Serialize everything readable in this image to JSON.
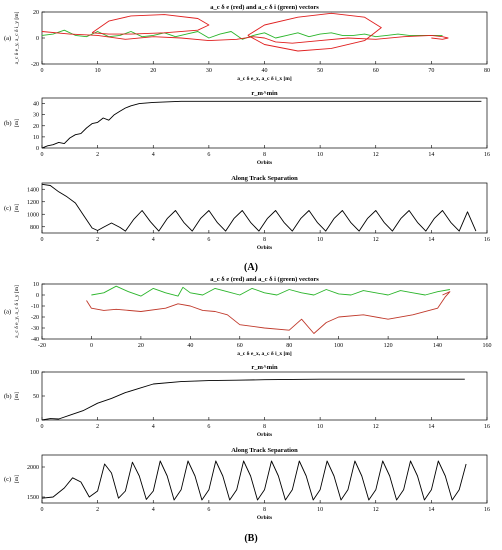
{
  "figure": {
    "labels": [
      "(A)",
      "(B)"
    ]
  },
  "chart_data": [
    {
      "type": "line",
      "panel_id": "(a)",
      "title": "a_c δ e (red) and a_c δ i (green) vectors",
      "xlabel": "a_c δ e_x, a_c δ i_x [m]",
      "ylabel": "a_c δ e_y, a_c δ i_y [m]",
      "xlim": [
        0,
        80
      ],
      "ylim": [
        -20,
        20
      ],
      "xticks": [
        0,
        10,
        20,
        30,
        40,
        50,
        60,
        70,
        80
      ],
      "yticks": [
        -20,
        0,
        20
      ],
      "grid": false,
      "series": [
        {
          "name": "green",
          "color": "#2bb52b",
          "x": [
            0,
            2,
            4,
            6,
            8,
            10,
            12,
            14,
            16,
            18,
            20,
            22,
            24,
            26,
            28,
            30,
            32,
            34,
            36,
            38,
            40,
            42,
            44,
            46,
            48,
            50,
            52,
            54,
            56,
            58,
            60,
            62,
            64,
            66,
            68,
            70,
            72
          ],
          "y": [
            2,
            3,
            6,
            2,
            1,
            5,
            1,
            2,
            5,
            1,
            2,
            4,
            1,
            3,
            5,
            0,
            3,
            5,
            -1,
            2,
            4,
            0,
            2,
            4,
            1,
            3,
            4,
            2,
            2,
            3,
            1,
            2,
            3,
            2,
            2,
            2,
            2
          ]
        },
        {
          "name": "red",
          "color": "#e02020",
          "x": [
            0,
            5,
            10,
            15,
            20,
            25,
            30,
            35,
            38,
            40,
            42,
            45,
            50,
            55,
            60,
            65,
            70,
            72,
            73,
            72,
            70
          ],
          "y": [
            5,
            3,
            2,
            -1,
            1,
            0,
            -2,
            -1,
            1,
            0,
            -3,
            -4,
            -2,
            0,
            -1,
            1,
            2,
            1,
            0,
            -1,
            0
          ]
        },
        {
          "name": "red-loop-1",
          "color": "#e02020",
          "x": [
            9,
            12,
            16,
            22,
            28,
            30,
            28,
            22,
            16,
            12,
            9
          ],
          "y": [
            4,
            13,
            17,
            18,
            15,
            10,
            6,
            4,
            3,
            3,
            4
          ]
        },
        {
          "name": "red-loop-2",
          "color": "#e02020",
          "x": [
            37,
            40,
            46,
            52,
            58,
            61,
            58,
            52,
            46,
            40,
            37
          ],
          "y": [
            2,
            10,
            16,
            19,
            16,
            8,
            -2,
            -8,
            -10,
            -5,
            2
          ]
        }
      ]
    },
    {
      "type": "line",
      "panel_id": "(b)",
      "title": "r_m^min",
      "xlabel": "Orbits",
      "ylabel": "[m]",
      "xlim": [
        0,
        16
      ],
      "ylim": [
        0,
        45
      ],
      "xticks": [
        0,
        2,
        4,
        6,
        8,
        10,
        12,
        14,
        16
      ],
      "yticks": [
        0,
        10,
        20,
        30,
        40
      ],
      "grid": false,
      "series": [
        {
          "name": "r_m^min",
          "color": "#000000",
          "x": [
            0,
            0.2,
            0.4,
            0.6,
            0.8,
            1.0,
            1.2,
            1.4,
            1.6,
            1.8,
            2.0,
            2.2,
            2.4,
            2.6,
            2.8,
            3.0,
            3.2,
            3.5,
            4.0,
            5,
            6,
            8,
            10,
            12,
            14,
            15.8
          ],
          "y": [
            0,
            2,
            3,
            5,
            4,
            9,
            12,
            13,
            18,
            22,
            23,
            27,
            25,
            30,
            33,
            36,
            38,
            40,
            41,
            42,
            42,
            42,
            42,
            42,
            42,
            42
          ]
        }
      ]
    },
    {
      "type": "line",
      "panel_id": "(c)",
      "title": "Along Track Separation",
      "xlabel": "Orbits",
      "ylabel": "[m]",
      "xlim": [
        0,
        16
      ],
      "ylim": [
        700,
        1500
      ],
      "xticks": [
        0,
        2,
        4,
        6,
        8,
        10,
        12,
        14,
        16
      ],
      "yticks": [
        800,
        1000,
        1200,
        1400
      ],
      "grid": false,
      "series": [
        {
          "name": "along-track",
          "color": "#000000",
          "x": [
            0,
            0.3,
            0.6,
            0.9,
            1.2,
            1.5,
            1.8,
            2.0,
            2.2,
            2.5,
            2.8,
            3.0,
            3.3,
            3.6,
            3.9,
            4.2,
            4.5,
            4.8,
            5.1,
            5.4,
            5.7,
            6.0,
            6.3,
            6.6,
            6.9,
            7.2,
            7.5,
            7.8,
            8.1,
            8.4,
            8.7,
            9.0,
            9.3,
            9.6,
            9.9,
            10.2,
            10.5,
            10.8,
            11.1,
            11.4,
            11.7,
            12.0,
            12.3,
            12.6,
            12.9,
            13.2,
            13.5,
            13.8,
            14.1,
            14.4,
            14.7,
            15.0,
            15.3,
            15.6
          ],
          "y": [
            1480,
            1460,
            1360,
            1280,
            1180,
            980,
            780,
            740,
            790,
            860,
            790,
            730,
            920,
            1060,
            880,
            730,
            930,
            1060,
            870,
            730,
            930,
            1060,
            870,
            730,
            930,
            1060,
            870,
            730,
            930,
            1060,
            870,
            730,
            930,
            1060,
            870,
            730,
            930,
            1060,
            870,
            730,
            930,
            1060,
            870,
            730,
            930,
            1060,
            870,
            730,
            930,
            1060,
            870,
            730,
            1040,
            730
          ]
        }
      ]
    },
    {
      "type": "line",
      "panel_id": "(a)",
      "title": "a_c δ e (red) and a_c δ i (green) vectors",
      "xlabel": "a_c δ e_x, a_c δ i_x [m]",
      "ylabel": "a_c δ e_y, a_c δ i_y [m]",
      "xlim": [
        -20,
        160
      ],
      "ylim": [
        -40,
        10
      ],
      "xticks": [
        -20,
        0,
        20,
        40,
        60,
        80,
        100,
        120,
        140,
        160
      ],
      "yticks": [
        -40,
        -30,
        -20,
        -10,
        0,
        10
      ],
      "grid": false,
      "series": [
        {
          "name": "green",
          "color": "#2bb52b",
          "x": [
            0,
            5,
            10,
            15,
            20,
            25,
            30,
            35,
            37,
            40,
            45,
            50,
            55,
            60,
            65,
            70,
            75,
            80,
            85,
            90,
            95,
            100,
            105,
            110,
            115,
            120,
            125,
            130,
            135,
            140,
            145
          ],
          "y": [
            0,
            2,
            8,
            3,
            -1,
            6,
            2,
            -1,
            7,
            2,
            0,
            6,
            3,
            0,
            6,
            2,
            0,
            5,
            2,
            0,
            5,
            1,
            0,
            4,
            2,
            0,
            4,
            2,
            0,
            3,
            5
          ]
        },
        {
          "name": "red",
          "color": "#c0392b",
          "x": [
            -2,
            0,
            5,
            10,
            20,
            30,
            35,
            40,
            45,
            50,
            55,
            60,
            70,
            80,
            85,
            90,
            95,
            100,
            110,
            120,
            130,
            140,
            143,
            145,
            142
          ],
          "y": [
            -5,
            -12,
            -14,
            -13,
            -15,
            -12,
            -8,
            -10,
            -14,
            -15,
            -18,
            -27,
            -30,
            -32,
            -22,
            -35,
            -25,
            -20,
            -18,
            -22,
            -18,
            -12,
            -2,
            3,
            0
          ]
        }
      ]
    },
    {
      "type": "line",
      "panel_id": "(b)",
      "title": "r_m^min",
      "xlabel": "Orbits",
      "ylabel": "[m]",
      "xlim": [
        0,
        16
      ],
      "ylim": [
        0,
        100
      ],
      "xticks": [
        0,
        2,
        4,
        6,
        8,
        10,
        12,
        14,
        16
      ],
      "yticks": [
        0,
        50,
        100
      ],
      "grid": false,
      "series": [
        {
          "name": "r_m^min",
          "color": "#000000",
          "x": [
            0,
            0.3,
            0.6,
            1.0,
            1.5,
            2.0,
            2.5,
            3.0,
            3.5,
            4.0,
            5,
            6,
            7,
            8,
            10,
            12,
            14,
            15.2
          ],
          "y": [
            0,
            3,
            2,
            10,
            20,
            35,
            45,
            57,
            66,
            75,
            80,
            82,
            83,
            84,
            85,
            85,
            85,
            85
          ]
        }
      ]
    },
    {
      "type": "line",
      "panel_id": "(c)",
      "title": "Along Track Separation",
      "xlabel": "Orbits",
      "ylabel": "[m]",
      "xlim": [
        0,
        16
      ],
      "ylim": [
        1400,
        2200
      ],
      "xticks": [
        0,
        2,
        4,
        6,
        8,
        10,
        12,
        14,
        16
      ],
      "yticks": [
        1500,
        2000
      ],
      "grid": false,
      "series": [
        {
          "name": "along-track",
          "color": "#000000",
          "x": [
            0,
            0.4,
            0.8,
            1.1,
            1.4,
            1.7,
            2.0,
            2.25,
            2.5,
            2.75,
            3.0,
            3.25,
            3.5,
            3.75,
            4.0,
            4.25,
            4.5,
            4.75,
            5.0,
            5.25,
            5.5,
            5.75,
            6.0,
            6.25,
            6.5,
            6.75,
            7.0,
            7.25,
            7.5,
            7.75,
            8.0,
            8.25,
            8.5,
            8.75,
            9.0,
            9.25,
            9.5,
            9.75,
            10.0,
            10.25,
            10.5,
            10.75,
            11.0,
            11.25,
            11.5,
            11.75,
            12.0,
            12.25,
            12.5,
            12.75,
            13.0,
            13.25,
            13.5,
            13.75,
            14.0,
            14.25,
            14.5,
            14.75,
            15.0,
            15.25
          ],
          "y": [
            1480,
            1500,
            1650,
            1820,
            1750,
            1500,
            1600,
            2050,
            1900,
            1480,
            1600,
            2080,
            1850,
            1460,
            1600,
            2100,
            1850,
            1450,
            1620,
            2100,
            1850,
            1450,
            1620,
            2100,
            1850,
            1450,
            1620,
            2100,
            1850,
            1450,
            1620,
            2100,
            1850,
            1450,
            1620,
            2100,
            1850,
            1450,
            1620,
            2100,
            1850,
            1450,
            1620,
            2100,
            1850,
            1450,
            1620,
            2100,
            1850,
            1450,
            1620,
            2100,
            1850,
            1450,
            1620,
            2100,
            1850,
            1450,
            1620,
            2050
          ]
        }
      ]
    }
  ]
}
